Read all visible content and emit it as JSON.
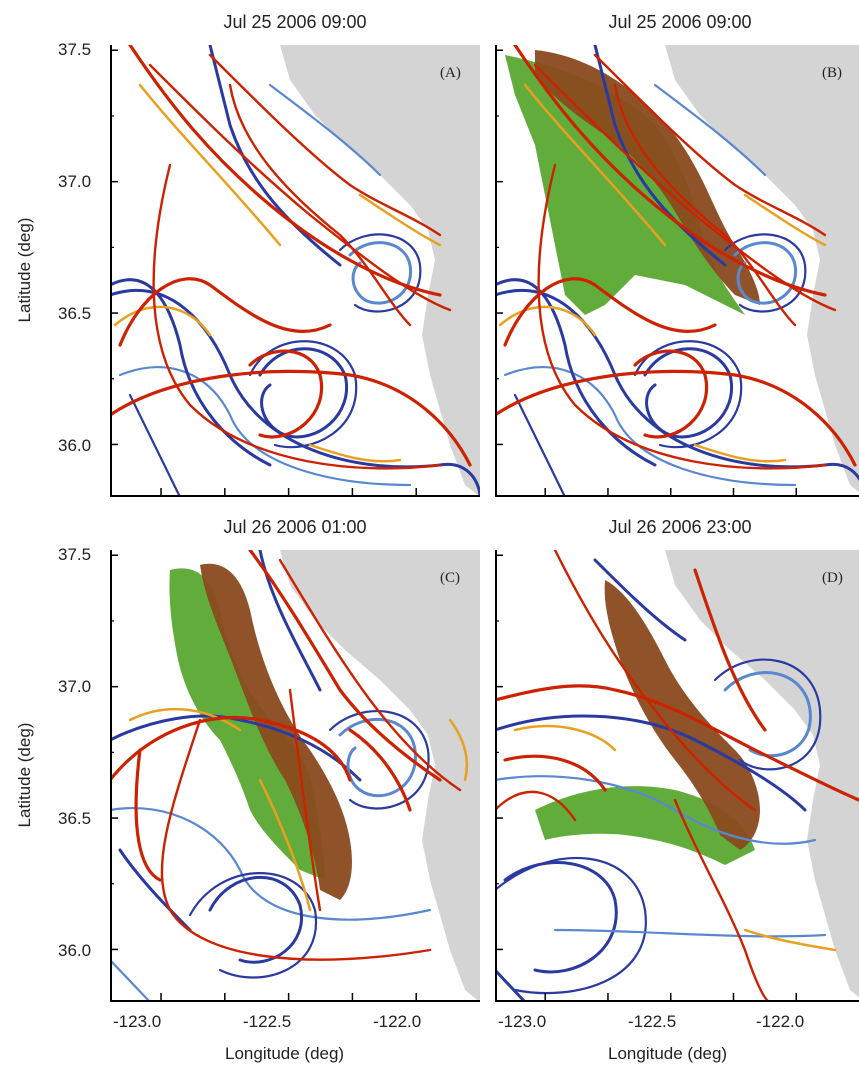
{
  "chart_data": [
    {
      "type": "scatter",
      "panel": "A",
      "title": "Jul 25 2006 09:00",
      "label": "(A)",
      "xlabel": "",
      "ylabel": "Latitude (deg)",
      "xlim": [
        -123.2,
        -121.75
      ],
      "ylim": [
        35.8,
        37.52
      ],
      "yticks": [
        {
          "value": 37.5,
          "label": "37.5"
        },
        {
          "value": 37.0,
          "label": "37.0"
        },
        {
          "value": 36.5,
          "label": "36.5"
        },
        {
          "value": 36.0,
          "label": "36.0"
        }
      ],
      "xticks": [],
      "green_region": false,
      "brown_region": false
    },
    {
      "type": "scatter",
      "panel": "B",
      "title": "Jul 25 2006 09:00",
      "label": "(B)",
      "xlabel": "",
      "ylabel": "",
      "xlim": [
        -123.2,
        -121.75
      ],
      "ylim": [
        35.8,
        37.52
      ],
      "yticks": [],
      "xticks": [],
      "green_region": true,
      "brown_region": true
    },
    {
      "type": "scatter",
      "panel": "C",
      "title": "Jul 26 2006 01:00",
      "label": "(C)",
      "xlabel": "Longitude (deg)",
      "ylabel": "Latitude (deg)",
      "xlim": [
        -123.2,
        -121.75
      ],
      "ylim": [
        35.8,
        37.52
      ],
      "yticks": [
        {
          "value": 37.5,
          "label": "37.5"
        },
        {
          "value": 37.0,
          "label": "37.0"
        },
        {
          "value": 36.5,
          "label": "36.5"
        },
        {
          "value": 36.0,
          "label": "36.0"
        }
      ],
      "xticks": [
        {
          "value": -123.0,
          "label": "-123.0"
        },
        {
          "value": -122.5,
          "label": "-122.5"
        },
        {
          "value": -122.0,
          "label": "-122.0"
        }
      ],
      "green_region": true,
      "brown_region": true
    },
    {
      "type": "scatter",
      "panel": "D",
      "title": "Jul 26 2006 23:00",
      "label": "(D)",
      "xlabel": "Longitude (deg)",
      "ylabel": "",
      "xlim": [
        -123.2,
        -121.75
      ],
      "ylim": [
        35.8,
        37.52
      ],
      "yticks": [],
      "xticks": [
        {
          "value": -123.0,
          "label": "-123.0"
        },
        {
          "value": -122.5,
          "label": "-122.5"
        },
        {
          "value": -122.0,
          "label": "-122.0"
        }
      ],
      "green_region": true,
      "brown_region": true
    }
  ],
  "colors": {
    "land": "#d4d4d4",
    "attracting_red": "#cc2200",
    "attracting_orange": "#e8a020",
    "repelling_blue": "#2a3aa0",
    "repelling_light": "#5a88d0",
    "green": "#5aa832",
    "brown": "#8a4a1e"
  }
}
